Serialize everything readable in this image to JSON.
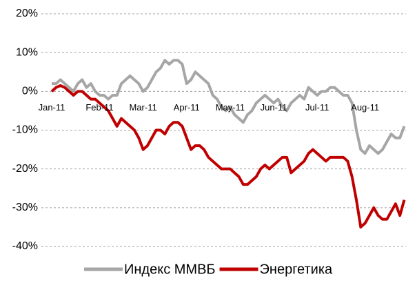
{
  "chart_data": {
    "type": "line",
    "categories": [
      "Jan-11",
      null,
      null,
      null,
      null,
      null,
      null,
      null,
      null,
      null,
      null,
      "Feb-11",
      null,
      null,
      null,
      null,
      null,
      null,
      null,
      null,
      null,
      "Mar-11",
      null,
      null,
      null,
      null,
      null,
      null,
      null,
      null,
      null,
      "Apr-11",
      null,
      null,
      null,
      null,
      null,
      null,
      null,
      null,
      null,
      "May-11",
      null,
      null,
      null,
      null,
      null,
      null,
      null,
      null,
      null,
      "Jun-11",
      null,
      null,
      null,
      null,
      null,
      null,
      null,
      null,
      null,
      "Jul-11",
      null,
      null,
      null,
      null,
      null,
      null,
      null,
      null,
      null,
      null,
      "Aug-11",
      null,
      null,
      null,
      null,
      null,
      null,
      null,
      null,
      null
    ],
    "series": [
      {
        "name": "Индекс ММВБ",
        "color": "#a6a6a6",
        "values": [
          2,
          2,
          3,
          2,
          1,
          0,
          2,
          3,
          1,
          2,
          0,
          -1,
          -1,
          -2,
          -1,
          -1,
          2,
          3,
          4,
          3,
          2,
          0,
          1,
          3,
          5,
          6,
          8,
          7,
          8,
          8,
          7,
          2,
          3,
          5,
          4,
          3,
          2,
          -1,
          -2,
          -4,
          -5,
          -4,
          -6,
          -7,
          -8,
          -6,
          -5,
          -3,
          -2,
          -1,
          -2,
          -3,
          -2,
          -4,
          -5,
          -3,
          -2,
          -1,
          -2,
          1,
          0,
          -1,
          0,
          0,
          1,
          1,
          0,
          -1,
          -1,
          -3,
          -10,
          -15,
          -16,
          -14,
          -15,
          -16,
          -15,
          -13,
          -11,
          -12,
          -12,
          -9
        ]
      },
      {
        "name": "Энергетика",
        "color": "#c00000",
        "values": [
          0,
          1,
          1.5,
          1,
          0,
          -1,
          0,
          0,
          -1,
          -2,
          -2,
          -3,
          -4,
          -5,
          -7,
          -9,
          -7,
          -8,
          -9,
          -10,
          -12,
          -15,
          -14,
          -12,
          -10,
          -10,
          -11,
          -9,
          -8,
          -8,
          -9,
          -12,
          -15,
          -14,
          -14,
          -15,
          -17,
          -18,
          -19,
          -20,
          -20,
          -20,
          -21,
          -22,
          -24,
          -24,
          -23,
          -22,
          -20,
          -19,
          -20,
          -19,
          -18,
          -17,
          -17,
          -21,
          -20,
          -19,
          -18,
          -16,
          -15,
          -16,
          -17,
          -18,
          -17,
          -17,
          -17,
          -17,
          -18,
          -22,
          -28,
          -35,
          -34,
          -32,
          -30,
          -32,
          -33,
          -33,
          -31,
          -29,
          -32,
          -28
        ]
      }
    ],
    "ylim": [
      -40,
      20
    ],
    "yticks": [
      {
        "value": -40,
        "label": "-40%"
      },
      {
        "value": -30,
        "label": "-30%"
      },
      {
        "value": -20,
        "label": "-20%"
      },
      {
        "value": -10,
        "label": "-10%"
      },
      {
        "value": 0,
        "label": "0%"
      },
      {
        "value": 10,
        "label": "10%"
      },
      {
        "value": 20,
        "label": "20%"
      }
    ],
    "grid": true,
    "legend": "bottom"
  }
}
